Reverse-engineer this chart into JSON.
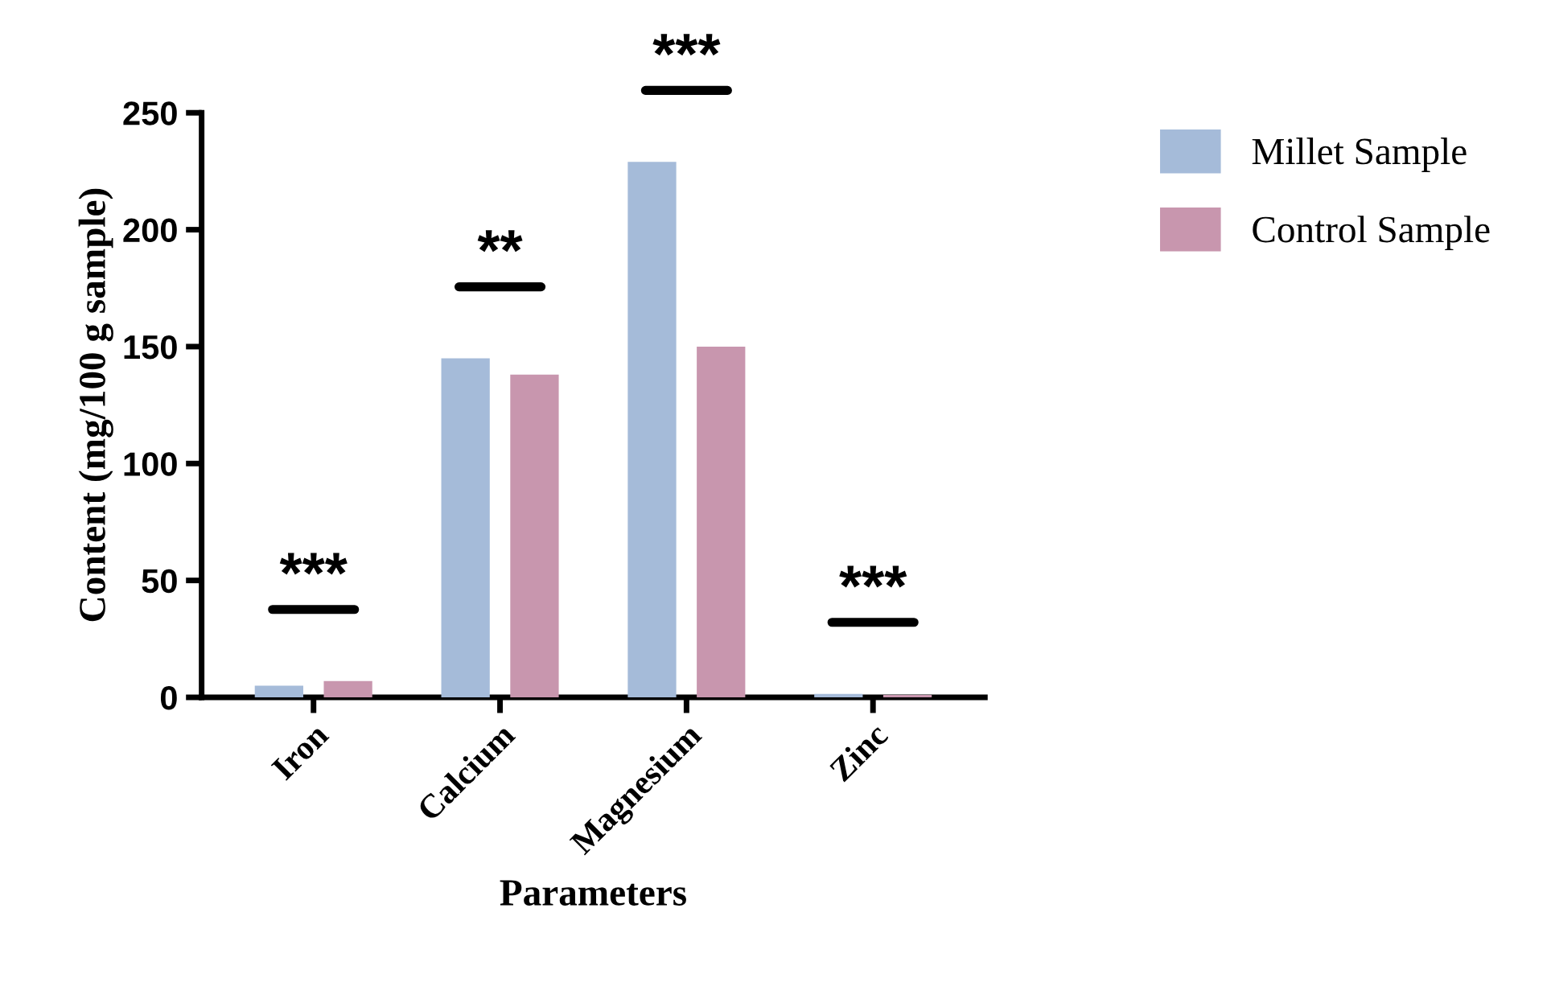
{
  "chart_data": {
    "type": "bar",
    "xlabel": "Parameters",
    "ylabel": "Content (mg/100 g sample)",
    "categories": [
      "Iron",
      "Calcium",
      "Magnesium",
      "Zinc"
    ],
    "series": [
      {
        "name": "Millet Sample",
        "color": "#a5bbd9",
        "values": [
          5,
          145,
          229,
          1.5
        ]
      },
      {
        "name": "Control Sample",
        "color": "#c896ae",
        "values": [
          7,
          138,
          150,
          1
        ]
      }
    ],
    "ylim": [
      0,
      250
    ],
    "yticks": [
      0,
      50,
      100,
      150,
      200,
      250
    ],
    "legend": "top right",
    "grid": false,
    "annotations": [
      "***",
      "**",
      "***",
      "***"
    ]
  }
}
